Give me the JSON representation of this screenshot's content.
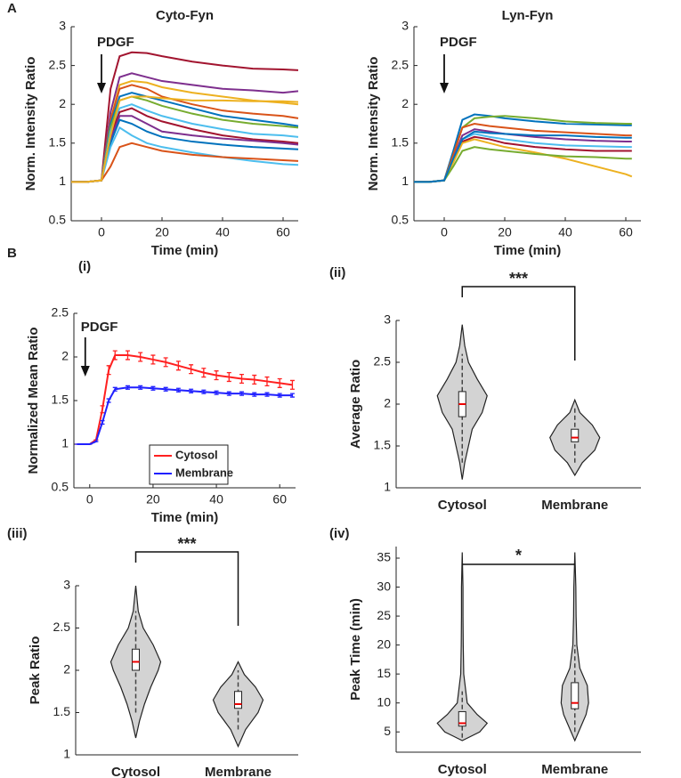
{
  "figure_labels": [
    "A",
    "B"
  ],
  "chart_data": [
    {
      "type": "line",
      "title": "Cyto-Fyn",
      "x_label": "Time (min)",
      "y_label": "Norm. Intensity Ratio",
      "annotation": "PDGF",
      "xlim": [
        -10,
        65
      ],
      "xticks": [
        0,
        20,
        40,
        60
      ],
      "ylim": [
        0.5,
        3
      ],
      "yticks": [
        0.5,
        1,
        1.5,
        2,
        2.5,
        3
      ],
      "x": [
        -10,
        -5,
        0,
        3,
        6,
        10,
        15,
        20,
        30,
        40,
        50,
        60,
        65
      ],
      "series": [
        {
          "color": "#a2142f",
          "values": [
            1,
            1,
            1.02,
            2.2,
            2.62,
            2.67,
            2.66,
            2.62,
            2.55,
            2.5,
            2.46,
            2.45,
            2.44
          ]
        },
        {
          "color": "#7e2f8e",
          "values": [
            1,
            1,
            1.02,
            1.9,
            2.35,
            2.4,
            2.35,
            2.3,
            2.25,
            2.2,
            2.18,
            2.15,
            2.17
          ]
        },
        {
          "color": "#edb120",
          "values": [
            1,
            1,
            1.02,
            1.8,
            2.25,
            2.3,
            2.28,
            2.22,
            2.15,
            2.1,
            2.05,
            2.02,
            2.0
          ]
        },
        {
          "color": "#d95319",
          "values": [
            1,
            1,
            1.02,
            1.8,
            2.2,
            2.25,
            2.2,
            2.1,
            2.0,
            1.92,
            1.88,
            1.85,
            1.82
          ]
        },
        {
          "color": "#0072bd",
          "values": [
            1,
            1,
            1.02,
            1.75,
            2.1,
            2.15,
            2.1,
            2.05,
            1.95,
            1.85,
            1.8,
            1.75,
            1.72
          ]
        },
        {
          "color": "#77ac30",
          "values": [
            1,
            1,
            1.02,
            1.7,
            2.05,
            2.1,
            2.05,
            1.98,
            1.88,
            1.8,
            1.75,
            1.72,
            1.7
          ]
        },
        {
          "color": "#4dbeee",
          "values": [
            1,
            1,
            1.02,
            1.65,
            1.95,
            2.0,
            1.92,
            1.85,
            1.75,
            1.68,
            1.62,
            1.6,
            1.58
          ]
        },
        {
          "color": "#a2142f",
          "values": [
            1,
            1,
            1.02,
            1.6,
            1.9,
            1.95,
            1.85,
            1.78,
            1.68,
            1.6,
            1.55,
            1.52,
            1.5
          ]
        },
        {
          "color": "#7e2f8e",
          "values": [
            1,
            1,
            1.02,
            1.55,
            1.85,
            1.85,
            1.75,
            1.65,
            1.6,
            1.56,
            1.53,
            1.5,
            1.48
          ]
        },
        {
          "color": "#0072bd",
          "values": [
            1,
            1,
            1.02,
            1.5,
            1.8,
            1.75,
            1.65,
            1.58,
            1.52,
            1.48,
            1.45,
            1.43,
            1.42
          ]
        },
        {
          "color": "#4dbeee",
          "values": [
            1,
            1,
            1.02,
            1.45,
            1.7,
            1.6,
            1.5,
            1.45,
            1.38,
            1.32,
            1.27,
            1.23,
            1.22
          ]
        },
        {
          "color": "#d95319",
          "values": [
            1,
            1,
            1.02,
            1.2,
            1.45,
            1.5,
            1.45,
            1.4,
            1.35,
            1.32,
            1.3,
            1.28,
            1.27
          ]
        },
        {
          "color": "#edb120",
          "values": [
            1,
            1,
            1.02,
            1.6,
            2.05,
            2.1,
            2.1,
            2.08,
            2.05,
            2.05,
            2.04,
            2.04,
            2.03
          ]
        }
      ]
    },
    {
      "type": "line",
      "title": "Lyn-Fyn",
      "x_label": "Time (min)",
      "y_label": "Norm. Intensity Ratio",
      "annotation": "PDGF",
      "xlim": [
        -10,
        65
      ],
      "xticks": [
        0,
        20,
        40,
        60
      ],
      "ylim": [
        0.5,
        3
      ],
      "yticks": [
        0.5,
        1,
        1.5,
        2,
        2.5,
        3
      ],
      "x": [
        -10,
        -5,
        0,
        3,
        6,
        10,
        15,
        20,
        30,
        40,
        50,
        60,
        62
      ],
      "series": [
        {
          "color": "#0072bd",
          "values": [
            1,
            1,
            1.02,
            1.4,
            1.8,
            1.87,
            1.85,
            1.82,
            1.78,
            1.75,
            1.74,
            1.73,
            1.73
          ]
        },
        {
          "color": "#77ac30",
          "values": [
            1,
            1,
            1.02,
            1.35,
            1.7,
            1.82,
            1.84,
            1.85,
            1.82,
            1.78,
            1.76,
            1.75,
            1.75
          ]
        },
        {
          "color": "#d95319",
          "values": [
            1,
            1,
            1.02,
            1.35,
            1.7,
            1.75,
            1.72,
            1.7,
            1.66,
            1.64,
            1.62,
            1.6,
            1.6
          ]
        },
        {
          "color": "#7e2f8e",
          "values": [
            1,
            1,
            1.02,
            1.3,
            1.6,
            1.68,
            1.65,
            1.62,
            1.58,
            1.55,
            1.53,
            1.52,
            1.52
          ]
        },
        {
          "color": "#4dbeee",
          "values": [
            1,
            1,
            1.02,
            1.3,
            1.55,
            1.62,
            1.58,
            1.55,
            1.5,
            1.47,
            1.46,
            1.45,
            1.45
          ]
        },
        {
          "color": "#a2142f",
          "values": [
            1,
            1,
            1.02,
            1.28,
            1.52,
            1.58,
            1.55,
            1.5,
            1.45,
            1.42,
            1.4,
            1.4,
            1.4
          ]
        },
        {
          "color": "#edb120",
          "values": [
            1,
            1,
            1.02,
            1.25,
            1.5,
            1.55,
            1.5,
            1.45,
            1.38,
            1.3,
            1.2,
            1.1,
            1.07
          ]
        },
        {
          "color": "#77ac30",
          "values": [
            1,
            1,
            1.02,
            1.2,
            1.4,
            1.45,
            1.42,
            1.4,
            1.36,
            1.33,
            1.32,
            1.3,
            1.3
          ]
        },
        {
          "color": "#0072bd",
          "values": [
            1,
            1,
            1.02,
            1.3,
            1.55,
            1.65,
            1.63,
            1.62,
            1.6,
            1.6,
            1.58,
            1.57,
            1.57
          ]
        }
      ]
    },
    {
      "type": "line",
      "panel_label": "(i)",
      "x_label": "Time (min)",
      "y_label": "Normalized Mean Ratio",
      "annotation": "PDGF",
      "legend": "lower center",
      "xlim": [
        -5,
        65
      ],
      "xticks": [
        0,
        20,
        40,
        60
      ],
      "ylim": [
        0.5,
        2.5
      ],
      "yticks": [
        0.5,
        1,
        1.5,
        2,
        2.5
      ],
      "x": [
        -4,
        0,
        2,
        4,
        6,
        8,
        12,
        16,
        20,
        24,
        28,
        32,
        36,
        40,
        44,
        48,
        52,
        56,
        60,
        64
      ],
      "series": [
        {
          "name": "Cytosol",
          "color": "#ff2020",
          "values": [
            1,
            1,
            1.05,
            1.4,
            1.85,
            2.02,
            2.02,
            2.0,
            1.97,
            1.94,
            1.9,
            1.86,
            1.82,
            1.79,
            1.77,
            1.75,
            1.74,
            1.72,
            1.7,
            1.68
          ],
          "errors": [
            0,
            0,
            0,
            0.04,
            0.05,
            0.05,
            0.05,
            0.05,
            0.05,
            0.05,
            0.05,
            0.05,
            0.05,
            0.05,
            0.05,
            0.05,
            0.05,
            0.05,
            0.05,
            0.05
          ]
        },
        {
          "name": "Membrane",
          "color": "#2020ff",
          "values": [
            1,
            1,
            1.03,
            1.25,
            1.5,
            1.63,
            1.65,
            1.65,
            1.64,
            1.63,
            1.62,
            1.61,
            1.6,
            1.59,
            1.58,
            1.58,
            1.57,
            1.57,
            1.56,
            1.56
          ],
          "errors": [
            0,
            0,
            0,
            0.02,
            0.02,
            0.02,
            0.02,
            0.02,
            0.02,
            0.02,
            0.02,
            0.02,
            0.02,
            0.02,
            0.02,
            0.02,
            0.02,
            0.02,
            0.02,
            0.02
          ]
        }
      ]
    },
    {
      "type": "violin",
      "panel_label": "(ii)",
      "y_label": "Average  Ratio",
      "significance": "***",
      "categories": [
        "Cytosol",
        "Membrane"
      ],
      "ylim": [
        1,
        3
      ],
      "yticks": [
        1,
        1.5,
        2,
        2.5,
        3
      ],
      "color": "#d3d3d3",
      "violins": [
        {
          "y": [
            1.1,
            1.3,
            1.5,
            1.7,
            1.9,
            2.1,
            2.3,
            2.5,
            2.7,
            2.95
          ],
          "density": [
            0,
            0.1,
            0.25,
            0.4,
            0.8,
            1,
            0.6,
            0.25,
            0.1,
            0
          ],
          "median": 2.0,
          "q1": 1.85,
          "q3": 2.15,
          "whisker": [
            1.3,
            2.6
          ]
        },
        {
          "y": [
            1.15,
            1.3,
            1.45,
            1.6,
            1.75,
            1.9,
            2.05
          ],
          "density": [
            0,
            0.3,
            0.8,
            1,
            0.7,
            0.2,
            0
          ],
          "median": 1.6,
          "q1": 1.55,
          "q3": 1.7,
          "whisker": [
            1.3,
            1.95
          ]
        }
      ]
    },
    {
      "type": "violin",
      "panel_label": "(iii)",
      "y_label": "Peak  Ratio",
      "significance": "***",
      "categories": [
        "Cytosol",
        "Membrane"
      ],
      "ylim": [
        1,
        3
      ],
      "yticks": [
        1,
        1.5,
        2,
        2.5,
        3
      ],
      "color": "#d3d3d3",
      "violins": [
        {
          "y": [
            1.2,
            1.4,
            1.6,
            1.8,
            2.0,
            2.1,
            2.3,
            2.5,
            2.7,
            3.0
          ],
          "density": [
            0,
            0.15,
            0.35,
            0.6,
            0.9,
            1,
            0.7,
            0.3,
            0.1,
            0
          ],
          "median": 2.1,
          "q1": 2.0,
          "q3": 2.25,
          "whisker": [
            1.5,
            2.7
          ]
        },
        {
          "y": [
            1.1,
            1.3,
            1.5,
            1.65,
            1.8,
            1.95,
            2.1
          ],
          "density": [
            0,
            0.3,
            0.8,
            1,
            0.7,
            0.25,
            0
          ],
          "median": 1.6,
          "q1": 1.55,
          "q3": 1.75,
          "whisker": [
            1.3,
            2.0
          ]
        }
      ]
    },
    {
      "type": "violin",
      "panel_label": "(iv)",
      "y_label": "Peak  Time (min)",
      "significance": "*",
      "categories": [
        "Cytosol",
        "Membrane"
      ],
      "ylim": [
        1.5,
        37
      ],
      "yticks": [
        5,
        10,
        15,
        20,
        25,
        30,
        35
      ],
      "color": "#d3d3d3",
      "violins": [
        {
          "y": [
            3.5,
            5,
            6.5,
            8,
            10,
            15,
            20,
            25,
            30,
            36
          ],
          "density": [
            0,
            0.7,
            1,
            0.6,
            0.2,
            0.06,
            0.04,
            0.03,
            0.03,
            0
          ],
          "median": 6.5,
          "q1": 6,
          "q3": 8.5,
          "whisker": [
            4,
            12
          ]
        },
        {
          "y": [
            3.5,
            5,
            8,
            10,
            13,
            16,
            20,
            25,
            30,
            36
          ],
          "density": [
            0,
            0.15,
            0.45,
            0.55,
            0.5,
            0.2,
            0.08,
            0.05,
            0.04,
            0
          ],
          "median": 10,
          "q1": 9,
          "q3": 13.5,
          "whisker": [
            5,
            20
          ]
        }
      ]
    }
  ]
}
